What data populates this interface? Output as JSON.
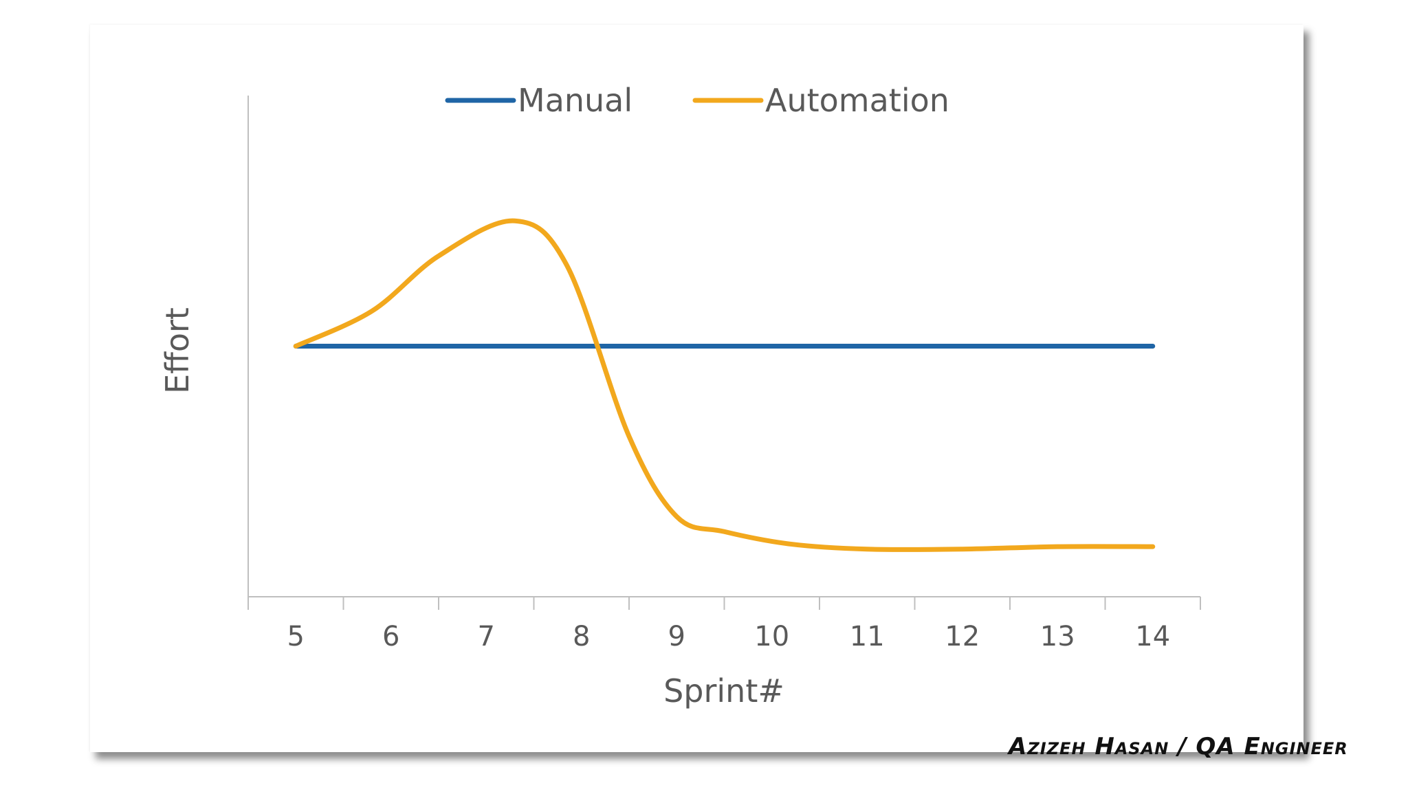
{
  "chart_data": {
    "type": "line",
    "title": "",
    "xlabel": "Sprint#",
    "ylabel": "Effort",
    "categories": [
      "5",
      "6",
      "7",
      "8",
      "9",
      "10",
      "11",
      "12",
      "13",
      "14"
    ],
    "ylim": [
      0,
      100
    ],
    "grid": false,
    "legend_position": "top-center",
    "series": [
      {
        "name": "Manual",
        "color": "#1f65a6",
        "x": [
          5,
          14
        ],
        "values": [
          50,
          50
        ]
      },
      {
        "name": "Automation",
        "color": "#f2a81d",
        "x": [
          5,
          5.8,
          6.5,
          7.3,
          7.85,
          8.5,
          9.0,
          9.5,
          10.2,
          11,
          12,
          13,
          14
        ],
        "values": [
          50,
          57,
          68,
          75,
          66,
          32,
          16,
          13,
          10.5,
          9.5,
          9.5,
          10,
          10
        ]
      }
    ]
  },
  "credit": "Azizeh Hasan / QA Engineer"
}
